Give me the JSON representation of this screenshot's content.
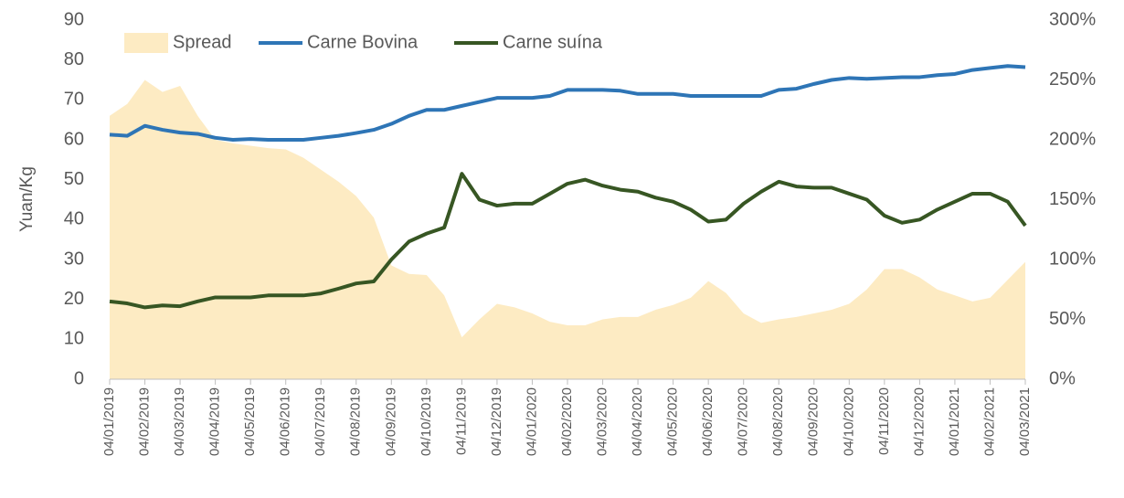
{
  "chart_data": {
    "type": "line",
    "y_label": "Yuan/Kg",
    "categories": [
      "04/01/2019",
      null,
      "04/02/2019",
      null,
      "04/03/2019",
      null,
      "04/04/2019",
      null,
      "04/05/2019",
      null,
      "04/06/2019",
      null,
      "04/07/2019",
      null,
      "04/08/2019",
      null,
      "04/09/2019",
      null,
      "04/10/2019",
      null,
      "04/11/2019",
      null,
      "04/12/2019",
      null,
      "04/01/2020",
      null,
      "04/02/2020",
      null,
      "04/03/2020",
      null,
      "04/04/2020",
      null,
      "04/05/2020",
      null,
      "04/06/2020",
      null,
      "04/07/2020",
      null,
      "04/08/2020",
      null,
      "04/09/2020",
      null,
      "04/10/2020",
      null,
      "04/11/2020",
      null,
      "04/12/2020",
      null,
      "04/01/2021",
      null,
      "04/02/2021",
      null,
      "04/03/2021"
    ],
    "series": [
      {
        "name": "Spread",
        "type": "area",
        "axis": "y2",
        "color": "#fdebc3",
        "values": [
          220,
          230,
          250,
          240,
          245,
          220,
          200,
          197,
          195,
          193,
          192,
          185,
          175,
          165,
          153,
          135,
          95,
          88,
          87,
          70,
          35,
          50,
          63,
          60,
          55,
          48,
          45,
          45,
          50,
          52,
          52,
          58,
          62,
          68,
          82,
          72,
          55,
          47,
          50,
          52,
          55,
          58,
          63,
          75,
          92,
          92,
          85,
          75,
          70,
          65,
          68,
          83,
          98
        ]
      },
      {
        "name": "Carne Bovina",
        "type": "line",
        "axis": "y",
        "color": "#2e75b6",
        "values": [
          61.3,
          61,
          63.5,
          62.5,
          61.8,
          61.5,
          60.5,
          60,
          60.2,
          60,
          60,
          60,
          60.5,
          61,
          61.7,
          62.5,
          64,
          66,
          67.5,
          67.5,
          68.5,
          69.5,
          70.5,
          70.5,
          70.5,
          71,
          72.5,
          72.5,
          72.5,
          72.3,
          71.5,
          71.5,
          71.5,
          71,
          71,
          71,
          71,
          71,
          72.5,
          72.8,
          74,
          75,
          75.5,
          75.3,
          75.5,
          75.7,
          75.7,
          76.2,
          76.5,
          77.5,
          78,
          78.5,
          78.2
        ]
      },
      {
        "name": "Carne suína",
        "type": "line",
        "axis": "y",
        "color": "#375623",
        "values": [
          19.5,
          19,
          18,
          18.5,
          18.3,
          19.5,
          20.5,
          20.5,
          20.5,
          21,
          21,
          21,
          21.5,
          22.7,
          24,
          24.5,
          30,
          34.5,
          36.5,
          38,
          51.5,
          45,
          43.5,
          44,
          44,
          46.5,
          49,
          50,
          48.5,
          47.5,
          47,
          45.5,
          44.5,
          42.5,
          39.5,
          40,
          44,
          47,
          49.5,
          48.3,
          48,
          48,
          46.5,
          45,
          41,
          39.2,
          40,
          42.5,
          44.5,
          46.5,
          46.5,
          44.5,
          38.5
        ]
      }
    ],
    "ylim": [
      0,
      90
    ],
    "yticks": [
      0,
      10,
      20,
      30,
      40,
      50,
      60,
      70,
      80,
      90
    ],
    "y2lim": [
      0,
      300
    ],
    "y2ticks": [
      {
        "value": 0,
        "label": "0%"
      },
      {
        "value": 50,
        "label": "50%"
      },
      {
        "value": 100,
        "label": "100%"
      },
      {
        "value": 150,
        "label": "150%"
      },
      {
        "value": 200,
        "label": "200%"
      },
      {
        "value": 250,
        "label": "250%"
      },
      {
        "value": 300,
        "label": "300%"
      }
    ],
    "legend": "top-left"
  }
}
